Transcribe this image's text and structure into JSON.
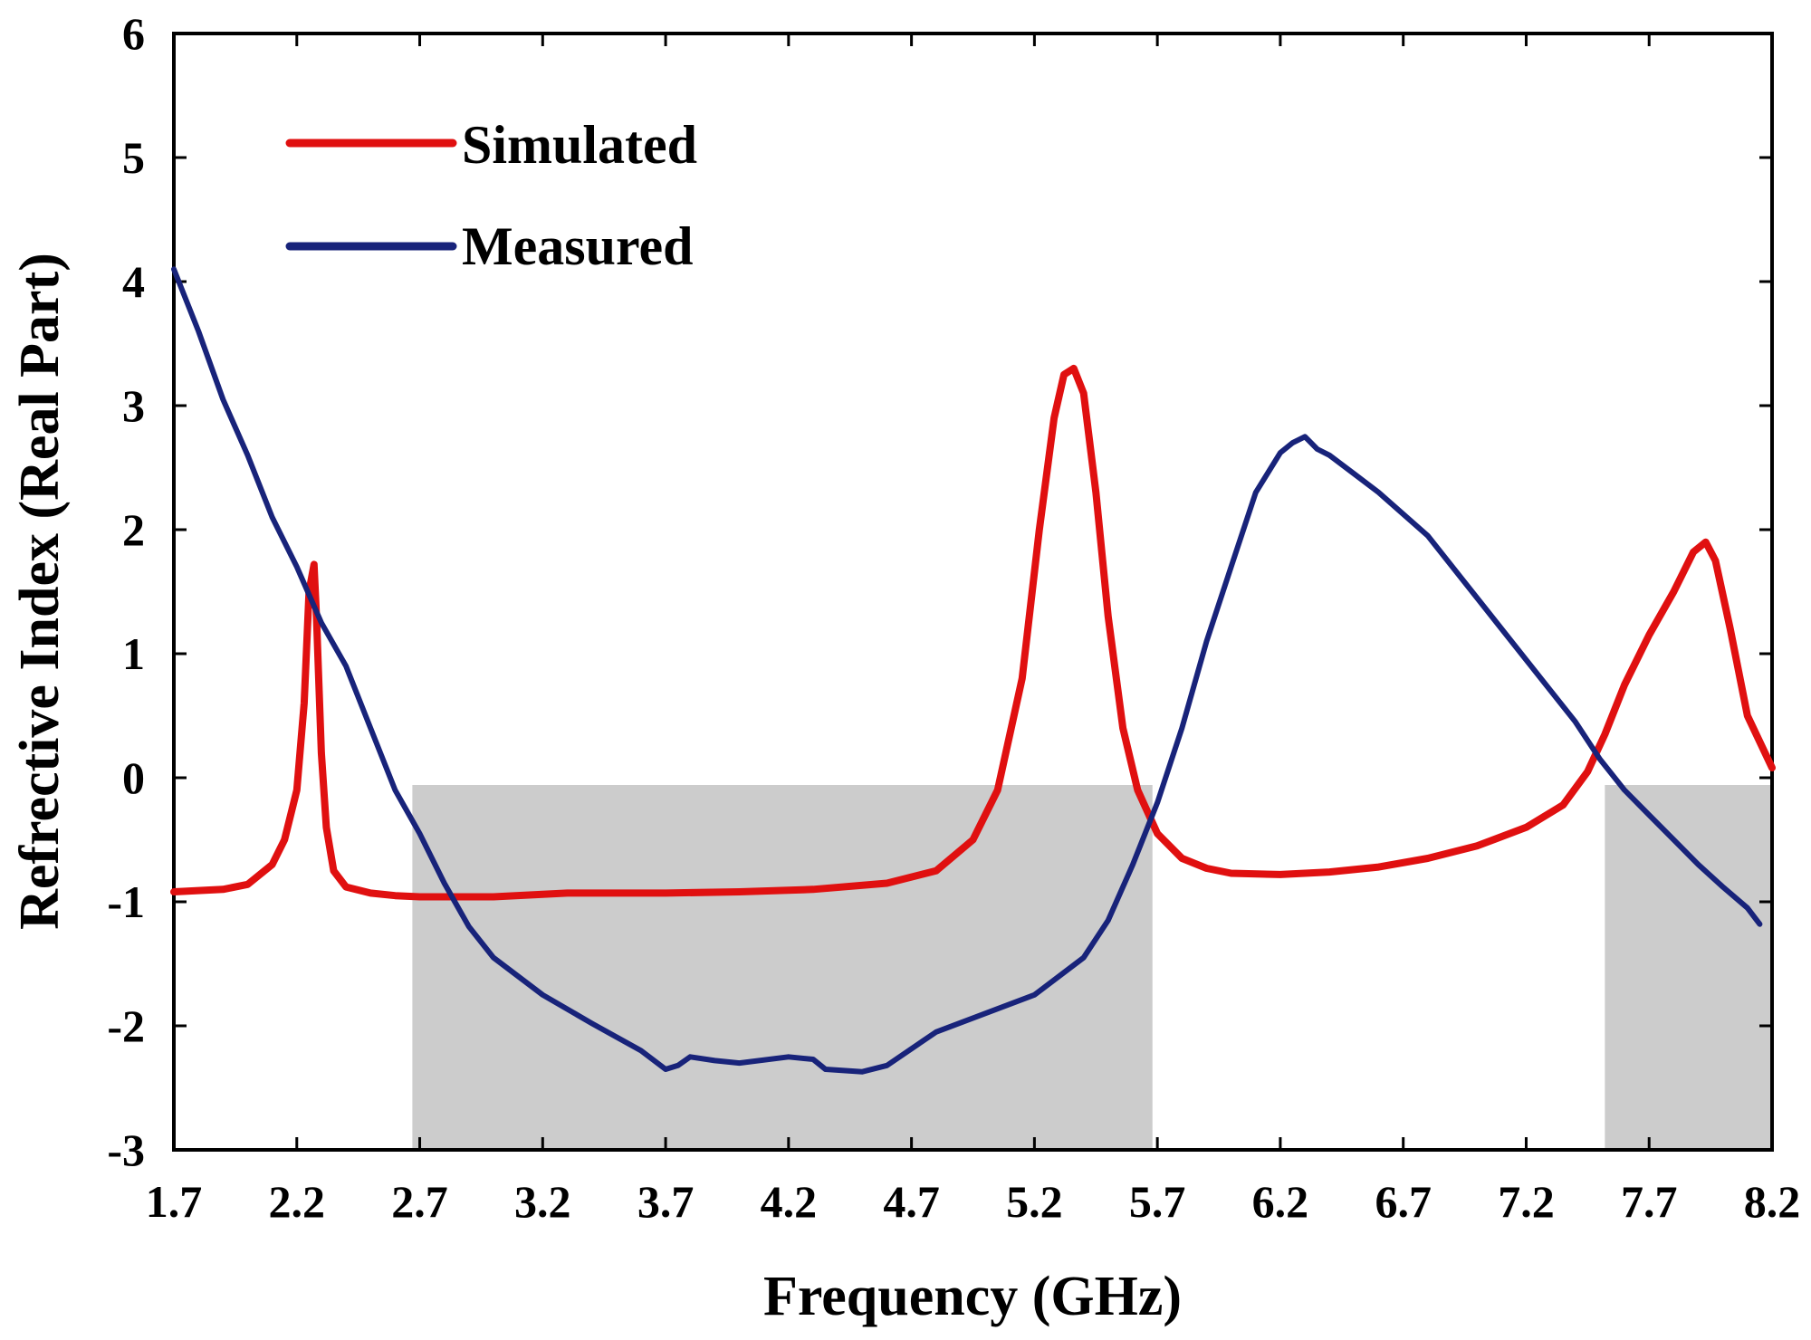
{
  "chart_data": {
    "type": "line",
    "title": "",
    "xlabel": "Frequency (GHz)",
    "ylabel": "Refrective Index (Real Part)",
    "xlim": [
      1.7,
      8.2
    ],
    "ylim": [
      -3,
      6
    ],
    "xticks": [
      "1.7",
      "2.2",
      "2.7",
      "3.2",
      "3.7",
      "4.2",
      "4.7",
      "5.2",
      "5.7",
      "6.2",
      "6.7",
      "7.2",
      "7.7",
      "8.2"
    ],
    "yticks": [
      "6",
      "5",
      "4",
      "3",
      "2",
      "1",
      "0",
      "-1",
      "-2",
      "-3"
    ],
    "grid": false,
    "legend_position": "top-left",
    "shaded_regions": [
      {
        "x": [
          2.67,
          5.68
        ],
        "y": [
          -3,
          0
        ]
      },
      {
        "x": [
          7.52,
          8.2
        ],
        "y": [
          -3,
          0
        ]
      }
    ],
    "series": [
      {
        "name": "Simulated",
        "color": "#e01010",
        "x": [
          1.7,
          1.9,
          2.0,
          2.1,
          2.15,
          2.2,
          2.23,
          2.25,
          2.27,
          2.28,
          2.3,
          2.32,
          2.35,
          2.4,
          2.5,
          2.6,
          2.7,
          3.0,
          3.3,
          3.7,
          4.0,
          4.3,
          4.6,
          4.8,
          4.95,
          5.05,
          5.15,
          5.22,
          5.28,
          5.32,
          5.36,
          5.4,
          5.45,
          5.5,
          5.56,
          5.62,
          5.7,
          5.8,
          5.9,
          6.0,
          6.2,
          6.4,
          6.6,
          6.8,
          7.0,
          7.2,
          7.35,
          7.45,
          7.52,
          7.6,
          7.7,
          7.8,
          7.88,
          7.93,
          7.97,
          8.03,
          8.1,
          8.2
        ],
        "y": [
          -0.92,
          -0.9,
          -0.86,
          -0.7,
          -0.5,
          -0.1,
          0.6,
          1.5,
          1.72,
          1.3,
          0.2,
          -0.4,
          -0.75,
          -0.88,
          -0.93,
          -0.95,
          -0.96,
          -0.96,
          -0.93,
          -0.93,
          -0.92,
          -0.9,
          -0.85,
          -0.75,
          -0.5,
          -0.1,
          0.8,
          2.0,
          2.9,
          3.25,
          3.3,
          3.1,
          2.3,
          1.3,
          0.4,
          -0.1,
          -0.45,
          -0.65,
          -0.73,
          -0.77,
          -0.78,
          -0.76,
          -0.72,
          -0.65,
          -0.55,
          -0.4,
          -0.22,
          0.05,
          0.35,
          0.75,
          1.15,
          1.5,
          1.82,
          1.9,
          1.75,
          1.2,
          0.5,
          0.08
        ]
      },
      {
        "name": "Measured",
        "color": "#18237a",
        "x": [
          1.7,
          1.8,
          1.9,
          2.0,
          2.1,
          2.2,
          2.3,
          2.4,
          2.5,
          2.6,
          2.7,
          2.8,
          2.9,
          3.0,
          3.2,
          3.4,
          3.6,
          3.7,
          3.75,
          3.8,
          3.9,
          4.0,
          4.2,
          4.3,
          4.35,
          4.5,
          4.6,
          4.8,
          5.0,
          5.2,
          5.4,
          5.5,
          5.6,
          5.7,
          5.8,
          5.9,
          6.0,
          6.1,
          6.2,
          6.25,
          6.3,
          6.35,
          6.4,
          6.5,
          6.6,
          6.8,
          7.0,
          7.2,
          7.4,
          7.5,
          7.6,
          7.7,
          7.8,
          7.9,
          8.0,
          8.1,
          8.15
        ],
        "y": [
          4.1,
          3.6,
          3.05,
          2.6,
          2.1,
          1.7,
          1.25,
          0.9,
          0.4,
          -0.1,
          -0.45,
          -0.85,
          -1.2,
          -1.45,
          -1.75,
          -1.98,
          -2.2,
          -2.35,
          -2.32,
          -2.25,
          -2.28,
          -2.3,
          -2.25,
          -2.27,
          -2.35,
          -2.37,
          -2.32,
          -2.05,
          -1.9,
          -1.75,
          -1.45,
          -1.15,
          -0.7,
          -0.2,
          0.4,
          1.1,
          1.7,
          2.3,
          2.62,
          2.7,
          2.75,
          2.65,
          2.6,
          2.45,
          2.3,
          1.95,
          1.45,
          0.95,
          0.45,
          0.15,
          -0.1,
          -0.3,
          -0.5,
          -0.7,
          -0.88,
          -1.05,
          -1.18
        ]
      }
    ]
  }
}
